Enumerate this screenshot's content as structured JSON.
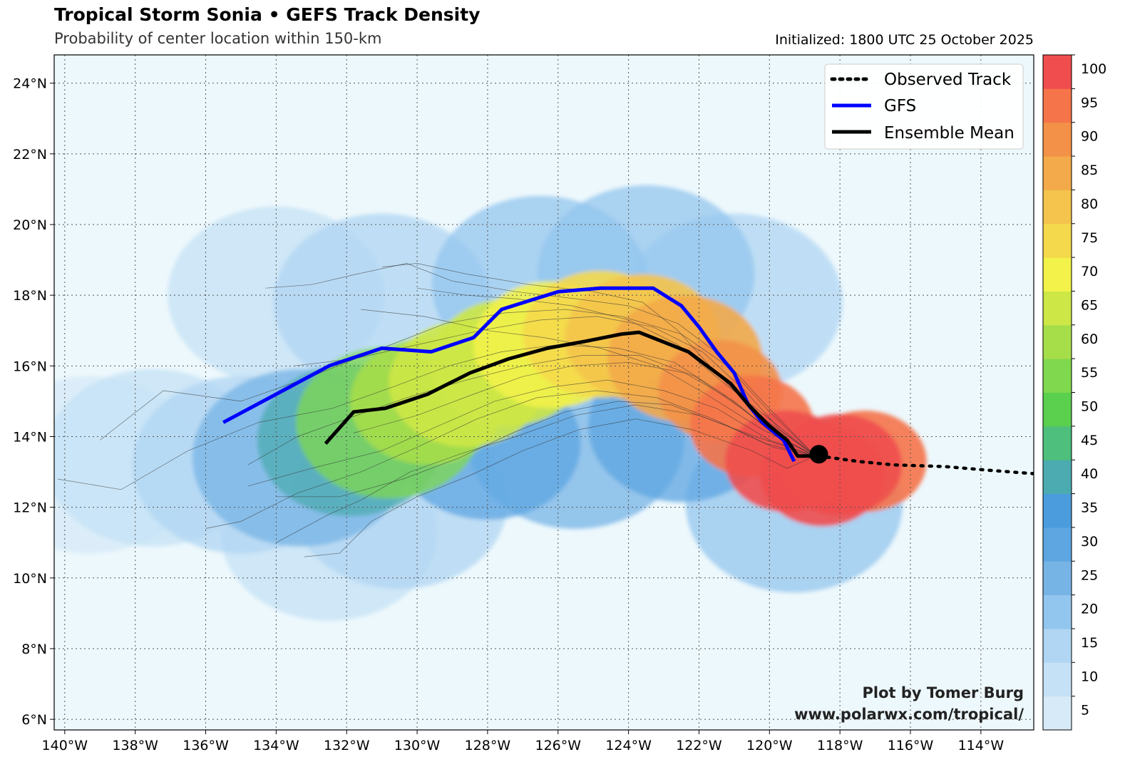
{
  "header": {
    "title": "Tropical Storm Sonia • GEFS Track Density",
    "subtitle": "Probability of center location within 150-km",
    "initialized": "Initialized: 1800 UTC 25 October 2025"
  },
  "credit": {
    "line1": "Plot by Tomer Burg",
    "line2": "www.polarwx.com/tropical/"
  },
  "legend": {
    "observed": "Observed Track",
    "gfs": "GFS",
    "mean": "Ensemble Mean"
  },
  "axes": {
    "lon_labels": [
      "140°W",
      "138°W",
      "136°W",
      "134°W",
      "132°W",
      "130°W",
      "128°W",
      "126°W",
      "124°W",
      "122°W",
      "120°W",
      "118°W",
      "116°W",
      "114°W"
    ],
    "lon_values": [
      -140,
      -138,
      -136,
      -134,
      -132,
      -130,
      -128,
      -126,
      -124,
      -122,
      -120,
      -118,
      -116,
      -114
    ],
    "lat_labels": [
      "6°N",
      "8°N",
      "10°N",
      "12°N",
      "14°N",
      "16°N",
      "18°N",
      "20°N",
      "22°N",
      "24°N"
    ],
    "lat_values": [
      6,
      8,
      10,
      12,
      14,
      16,
      18,
      20,
      22,
      24
    ],
    "lon_range": [
      -140.3,
      -112.5
    ],
    "lat_range": [
      5.7,
      24.8
    ]
  },
  "colorbar": {
    "labels": [
      "5",
      "10",
      "15",
      "20",
      "25",
      "30",
      "35",
      "40",
      "45",
      "50",
      "55",
      "60",
      "65",
      "70",
      "75",
      "80",
      "85",
      "90",
      "95",
      "100"
    ],
    "colors": [
      "#d6eaf8",
      "#c4e1f6",
      "#b0d6f3",
      "#93c6ee",
      "#77b4e6",
      "#5ea6e1",
      "#4b9cdc",
      "#4cabb0",
      "#4ebf7c",
      "#5bcf4e",
      "#7fd84d",
      "#a6de4a",
      "#cde746",
      "#f2f24a",
      "#f4d94c",
      "#f4c44c",
      "#f3aa4a",
      "#f39148",
      "#f5744a",
      "#f04e4e"
    ]
  },
  "chart_data": {
    "type": "map",
    "storm": "Tropical Storm Sonia",
    "current_position": [
      -118.6,
      13.5
    ],
    "observed_track": [
      [
        -118.6,
        13.45
      ],
      [
        -117.5,
        13.3
      ],
      [
        -116.5,
        13.2
      ],
      [
        -115.0,
        13.15
      ],
      [
        -113.8,
        13.05
      ],
      [
        -112.5,
        12.95
      ]
    ],
    "gfs_track": [
      [
        -135.5,
        14.4
      ],
      [
        -134.0,
        15.2
      ],
      [
        -132.5,
        16.0
      ],
      [
        -131.0,
        16.5
      ],
      [
        -129.6,
        16.4
      ],
      [
        -128.4,
        16.8
      ],
      [
        -127.6,
        17.6
      ],
      [
        -126.0,
        18.1
      ],
      [
        -124.8,
        18.2
      ],
      [
        -123.3,
        18.2
      ],
      [
        -122.5,
        17.7
      ],
      [
        -122.0,
        17.1
      ],
      [
        -121.5,
        16.4
      ],
      [
        -121.0,
        15.8
      ],
      [
        -120.6,
        14.9
      ],
      [
        -120.2,
        14.4
      ],
      [
        -119.6,
        13.9
      ],
      [
        -119.3,
        13.3
      ]
    ],
    "ensemble_mean_track": [
      [
        -132.6,
        13.8
      ],
      [
        -131.8,
        14.7
      ],
      [
        -130.9,
        14.8
      ],
      [
        -129.7,
        15.2
      ],
      [
        -128.5,
        15.8
      ],
      [
        -127.4,
        16.2
      ],
      [
        -126.3,
        16.5
      ],
      [
        -125.2,
        16.7
      ],
      [
        -124.2,
        16.9
      ],
      [
        -123.7,
        16.95
      ],
      [
        -122.3,
        16.4
      ],
      [
        -121.1,
        15.5
      ],
      [
        -120.6,
        14.9
      ],
      [
        -120.0,
        14.3
      ],
      [
        -119.5,
        13.9
      ],
      [
        -119.2,
        13.45
      ],
      [
        -118.7,
        13.45
      ]
    ],
    "density_points": [
      [
        -118.5,
        12.9,
        100
      ],
      [
        -119.5,
        13.3,
        100
      ],
      [
        -118.0,
        13.2,
        100
      ],
      [
        -117.3,
        13.3,
        95
      ],
      [
        -120.5,
        14.3,
        95
      ],
      [
        -121.4,
        15.3,
        90
      ],
      [
        -122.4,
        16.2,
        85
      ],
      [
        -123.6,
        16.8,
        80
      ],
      [
        -124.8,
        16.9,
        75
      ],
      [
        -126.2,
        16.6,
        70
      ],
      [
        -127.4,
        16.1,
        65
      ],
      [
        -128.6,
        15.5,
        65
      ],
      [
        -129.7,
        15.0,
        60
      ],
      [
        -130.8,
        14.4,
        55
      ],
      [
        -131.9,
        13.9,
        40
      ],
      [
        -133.3,
        13.4,
        25
      ],
      [
        -135.0,
        13.2,
        15
      ],
      [
        -137.5,
        13.4,
        10
      ],
      [
        -139.3,
        13.2,
        5
      ],
      [
        -126.5,
        18.3,
        20
      ],
      [
        -123.5,
        18.6,
        20
      ],
      [
        -121.0,
        17.8,
        15
      ],
      [
        -131.0,
        17.8,
        15
      ],
      [
        -134.0,
        18.0,
        8
      ],
      [
        -132.5,
        11.3,
        10
      ],
      [
        -130.5,
        12.2,
        15
      ],
      [
        -125.5,
        13.9,
        25
      ],
      [
        -122.5,
        14.3,
        30
      ],
      [
        -128.0,
        13.8,
        30
      ],
      [
        -119.3,
        12.1,
        20
      ]
    ],
    "member_tracks": [
      [
        [
          -118.7,
          13.45
        ],
        [
          -120.0,
          14.5
        ],
        [
          -121.4,
          15.6
        ],
        [
          -122.6,
          16.6
        ],
        [
          -124.0,
          17.3
        ],
        [
          -125.6,
          17.7
        ],
        [
          -127.2,
          17.9
        ],
        [
          -128.6,
          18.0
        ],
        [
          -130.0,
          18.2
        ]
      ],
      [
        [
          -118.7,
          13.45
        ],
        [
          -120.2,
          14.2
        ],
        [
          -121.8,
          15.2
        ],
        [
          -123.2,
          16.0
        ],
        [
          -124.8,
          16.5
        ],
        [
          -126.4,
          16.8
        ],
        [
          -128.0,
          17.0
        ],
        [
          -129.8,
          17.4
        ],
        [
          -131.6,
          17.6
        ]
      ],
      [
        [
          -118.7,
          13.45
        ],
        [
          -119.8,
          14.0
        ],
        [
          -121.0,
          15.0
        ],
        [
          -122.4,
          15.8
        ],
        [
          -124.0,
          16.1
        ],
        [
          -125.6,
          16.0
        ],
        [
          -127.0,
          15.7
        ],
        [
          -128.4,
          15.2
        ],
        [
          -130.0,
          14.6
        ],
        [
          -131.8,
          14.1
        ]
      ],
      [
        [
          -118.7,
          13.45
        ],
        [
          -120.0,
          13.9
        ],
        [
          -121.5,
          14.8
        ],
        [
          -123.0,
          15.3
        ],
        [
          -124.6,
          15.6
        ],
        [
          -126.2,
          15.4
        ],
        [
          -127.8,
          15.0
        ],
        [
          -129.4,
          14.3
        ],
        [
          -131.0,
          13.6
        ],
        [
          -133.0,
          13.1
        ],
        [
          -134.8,
          12.6
        ]
      ],
      [
        [
          -118.7,
          13.45
        ],
        [
          -119.9,
          13.7
        ],
        [
          -121.2,
          14.3
        ],
        [
          -122.8,
          14.9
        ],
        [
          -124.3,
          15.0
        ],
        [
          -125.8,
          14.7
        ],
        [
          -127.3,
          14.1
        ],
        [
          -128.8,
          13.4
        ],
        [
          -130.4,
          12.8
        ],
        [
          -132.2,
          12.3
        ],
        [
          -134.0,
          12.3
        ]
      ],
      [
        [
          -118.7,
          13.45
        ],
        [
          -120.3,
          14.6
        ],
        [
          -121.6,
          15.9
        ],
        [
          -122.6,
          17.0
        ],
        [
          -123.6,
          17.8
        ],
        [
          -125.0,
          18.1
        ],
        [
          -126.8,
          18.3
        ],
        [
          -128.6,
          18.6
        ],
        [
          -130.0,
          18.9
        ],
        [
          -131.0,
          18.8
        ]
      ],
      [
        [
          -118.7,
          13.45
        ],
        [
          -119.7,
          14.2
        ],
        [
          -120.7,
          15.3
        ],
        [
          -121.9,
          16.4
        ],
        [
          -123.3,
          17.1
        ],
        [
          -124.9,
          17.4
        ],
        [
          -126.5,
          17.3
        ],
        [
          -128.2,
          17.0
        ],
        [
          -130.0,
          16.6
        ],
        [
          -131.8,
          16.2
        ],
        [
          -133.5,
          16.0
        ]
      ],
      [
        [
          -118.7,
          13.45
        ],
        [
          -120.4,
          14.0
        ],
        [
          -122.0,
          14.6
        ],
        [
          -123.8,
          14.9
        ],
        [
          -125.5,
          14.6
        ],
        [
          -127.2,
          14.0
        ],
        [
          -128.8,
          13.5
        ],
        [
          -130.2,
          13.0
        ],
        [
          -131.6,
          12.2
        ],
        [
          -132.5,
          11.8
        ],
        [
          -134.0,
          11.0
        ]
      ],
      [
        [
          -118.7,
          13.45
        ],
        [
          -120.0,
          14.7
        ],
        [
          -121.2,
          16.0
        ],
        [
          -122.5,
          16.9
        ],
        [
          -124.2,
          17.4
        ],
        [
          -125.8,
          17.6
        ],
        [
          -127.5,
          17.5
        ],
        [
          -129.2,
          17.2
        ],
        [
          -131.0,
          16.5
        ],
        [
          -133.0,
          15.7
        ],
        [
          -135.0,
          15.0
        ],
        [
          -137.2,
          15.3
        ],
        [
          -139.0,
          13.9
        ]
      ],
      [
        [
          -118.7,
          13.45
        ],
        [
          -119.9,
          14.1
        ],
        [
          -121.3,
          15.2
        ],
        [
          -122.7,
          16.1
        ],
        [
          -124.3,
          16.5
        ],
        [
          -126.0,
          16.6
        ],
        [
          -127.6,
          16.4
        ],
        [
          -129.1,
          16.0
        ],
        [
          -130.7,
          15.4
        ],
        [
          -132.4,
          14.8
        ],
        [
          -134.5,
          14.4
        ],
        [
          -136.5,
          13.6
        ],
        [
          -138.4,
          12.5
        ],
        [
          -140.2,
          12.8
        ]
      ],
      [
        [
          -118.7,
          13.45
        ],
        [
          -120.1,
          13.8
        ],
        [
          -121.6,
          14.5
        ],
        [
          -123.2,
          15.1
        ],
        [
          -124.9,
          15.3
        ],
        [
          -126.6,
          15.1
        ],
        [
          -128.3,
          14.5
        ],
        [
          -130.0,
          13.7
        ],
        [
          -131.6,
          13.0
        ],
        [
          -133.4,
          12.4
        ],
        [
          -135.0,
          11.6
        ],
        [
          -136.0,
          11.4
        ]
      ],
      [
        [
          -118.7,
          13.45
        ],
        [
          -119.5,
          13.1
        ],
        [
          -120.5,
          13.6
        ],
        [
          -122.2,
          14.2
        ],
        [
          -123.8,
          14.5
        ],
        [
          -125.4,
          14.2
        ],
        [
          -127.0,
          13.6
        ],
        [
          -128.5,
          12.9
        ],
        [
          -130.0,
          12.3
        ],
        [
          -131.3,
          11.6
        ],
        [
          -132.2,
          10.7
        ],
        [
          -133.2,
          10.6
        ]
      ],
      [
        [
          -118.7,
          13.45
        ],
        [
          -120.2,
          15.0
        ],
        [
          -121.4,
          16.3
        ],
        [
          -122.6,
          17.2
        ],
        [
          -124.0,
          17.7
        ],
        [
          -125.5,
          17.9
        ],
        [
          -127.2,
          18.1
        ],
        [
          -129.0,
          18.4
        ],
        [
          -130.3,
          18.9
        ],
        [
          -131.7,
          18.6
        ],
        [
          -133.0,
          18.3
        ],
        [
          -134.3,
          18.2
        ]
      ],
      [
        [
          -118.7,
          13.45
        ],
        [
          -119.6,
          13.9
        ],
        [
          -120.8,
          14.8
        ],
        [
          -122.1,
          15.7
        ],
        [
          -123.7,
          16.3
        ],
        [
          -125.3,
          16.3
        ],
        [
          -127.0,
          16.0
        ],
        [
          -128.6,
          15.6
        ],
        [
          -130.3,
          15.1
        ],
        [
          -132.0,
          14.5
        ],
        [
          -133.4,
          14.0
        ],
        [
          -134.8,
          13.2
        ]
      ]
    ]
  }
}
